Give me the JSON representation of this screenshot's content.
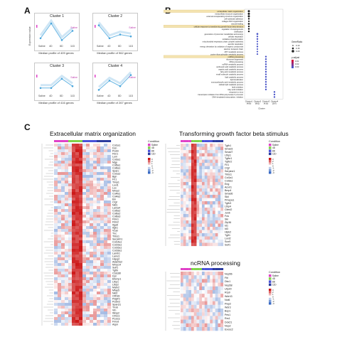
{
  "panels": {
    "a": "A",
    "b": "B",
    "c": "C"
  },
  "panel_a": {
    "ylabel": "Expression value",
    "clusters": [
      {
        "title": "Cluster 1",
        "caption": "Median profile of 409 genes",
        "ticks": [
          "Saline",
          "4D",
          "8D",
          "11D"
        ],
        "values": [
          0.2,
          1.0,
          0.1,
          0.6
        ],
        "tag": "Saline"
      },
      {
        "title": "Cluster 2",
        "caption": "Median profile of 962 genes",
        "ticks": [
          "Saline",
          "4D",
          "8D",
          "11D"
        ],
        "values": [
          0.9,
          0.2,
          0.4,
          0.3
        ],
        "tag": "Saline"
      },
      {
        "title": "Cluster 3",
        "caption": "Median profile of 416 genes",
        "ticks": [
          "Saline",
          "4D",
          "8D",
          "11D"
        ],
        "values": [
          0.2,
          0.2,
          0.7,
          0.3
        ],
        "tag": "Saline"
      },
      {
        "title": "Cluster 4",
        "caption": "Median profile of 267 genes",
        "ticks": [
          "Saline",
          "4D",
          "8D",
          "11D"
        ],
        "values": [
          0.1,
          0.6,
          0.3,
          0.9
        ],
        "tag": "Saline"
      }
    ]
  },
  "panel_b": {
    "terms": [
      "extracellular matrix organization",
      "extracellular structure organization",
      "external encapsulating structure organization",
      "cell-substrate adhesion",
      "collagen fibril organization",
      "wound healing",
      "cellular response to transforming growth factor beta stimulus",
      "regulation of angiogenesis",
      "ossification",
      "generation of precursor metabolites and energy",
      "cellular respiration",
      "oxidative phosphorylation",
      "mitochondrial respiratory chain complex assembly",
      "aerobic respiration",
      "energy derivation by oxidation of organic compounds",
      "electron transport chain",
      "ATP metabolic process",
      "purine ribonucleotide metabolic process",
      "ncRNA processing",
      "ribosome biogenesis",
      "rRNA processing",
      "ncRNA metabolic process",
      "carboxylic acid catabolic process",
      "organic acid catabolic process",
      "fatty acid metabolic process",
      "small molecule catabolic process",
      "lipid catabolic process",
      "lipid localization",
      "monocarboxylic acid metabolic process",
      "cellular lipid catabolic process",
      "lipid oxidation",
      "fatty acid oxidation",
      "response to virus",
      "transcription initiation from RNA polymerase II promoter",
      "DNA-templated transcription, initiation"
    ],
    "highlighted": [
      0,
      6,
      18
    ],
    "clusters": [
      "Cluster1\n(409)",
      "Cluster2\n(962)",
      "Cluster3\n(416)",
      "Cluster4\n(267)"
    ],
    "xlabel": "Cluster",
    "dots": [
      {
        "term": 0,
        "cluster": 0,
        "ratio": 0.15,
        "p": 0.2
      },
      {
        "term": 1,
        "cluster": 0,
        "ratio": 0.15,
        "p": 0.2
      },
      {
        "term": 2,
        "cluster": 0,
        "ratio": 0.15,
        "p": 0.2
      },
      {
        "term": 3,
        "cluster": 0,
        "ratio": 0.1,
        "p": 0.3
      },
      {
        "term": 4,
        "cluster": 0,
        "ratio": 0.08,
        "p": 0.3
      },
      {
        "term": 5,
        "cluster": 0,
        "ratio": 0.12,
        "p": 0.3
      },
      {
        "term": 6,
        "cluster": 0,
        "ratio": 0.1,
        "p": 0.3
      },
      {
        "term": 7,
        "cluster": 0,
        "ratio": 0.1,
        "p": 0.4
      },
      {
        "term": 8,
        "cluster": 0,
        "ratio": 0.1,
        "p": 0.4
      },
      {
        "term": 9,
        "cluster": 1,
        "ratio": 0.12,
        "p": 0.9
      },
      {
        "term": 10,
        "cluster": 1,
        "ratio": 0.1,
        "p": 0.9
      },
      {
        "term": 11,
        "cluster": 1,
        "ratio": 0.1,
        "p": 0.9
      },
      {
        "term": 12,
        "cluster": 1,
        "ratio": 0.08,
        "p": 0.9
      },
      {
        "term": 13,
        "cluster": 1,
        "ratio": 0.08,
        "p": 0.9
      },
      {
        "term": 14,
        "cluster": 1,
        "ratio": 0.1,
        "p": 0.9
      },
      {
        "term": 15,
        "cluster": 1,
        "ratio": 0.08,
        "p": 0.9
      },
      {
        "term": 16,
        "cluster": 1,
        "ratio": 0.08,
        "p": 0.9
      },
      {
        "term": 17,
        "cluster": 1,
        "ratio": 0.08,
        "p": 0.9
      },
      {
        "term": 18,
        "cluster": 2,
        "ratio": 0.1,
        "p": 0.9
      },
      {
        "term": 19,
        "cluster": 2,
        "ratio": 0.1,
        "p": 0.9
      },
      {
        "term": 20,
        "cluster": 2,
        "ratio": 0.1,
        "p": 0.9
      },
      {
        "term": 21,
        "cluster": 2,
        "ratio": 0.1,
        "p": 0.9
      },
      {
        "term": 22,
        "cluster": 2,
        "ratio": 0.1,
        "p": 0.9
      },
      {
        "term": 23,
        "cluster": 2,
        "ratio": 0.1,
        "p": 0.9
      },
      {
        "term": 24,
        "cluster": 2,
        "ratio": 0.1,
        "p": 0.9
      },
      {
        "term": 25,
        "cluster": 2,
        "ratio": 0.1,
        "p": 0.9
      },
      {
        "term": 26,
        "cluster": 2,
        "ratio": 0.1,
        "p": 0.9
      },
      {
        "term": 27,
        "cluster": 2,
        "ratio": 0.1,
        "p": 0.9
      },
      {
        "term": 28,
        "cluster": 2,
        "ratio": 0.1,
        "p": 0.9
      },
      {
        "term": 29,
        "cluster": 2,
        "ratio": 0.1,
        "p": 0.9
      },
      {
        "term": 30,
        "cluster": 2,
        "ratio": 0.1,
        "p": 0.9
      },
      {
        "term": 31,
        "cluster": 2,
        "ratio": 0.1,
        "p": 0.9
      },
      {
        "term": 32,
        "cluster": 3,
        "ratio": 0.1,
        "p": 0.9
      },
      {
        "term": 33,
        "cluster": 3,
        "ratio": 0.1,
        "p": 0.9
      },
      {
        "term": 34,
        "cluster": 3,
        "ratio": 0.1,
        "p": 0.9
      }
    ],
    "legend": {
      "generatio_title": "GeneRatio",
      "generatio_items": [
        "0.10",
        "0.15",
        "0.20"
      ],
      "padjust_title": "p.adjust",
      "padjust_items": [
        "0.01",
        "0.02",
        "0.03"
      ]
    },
    "colors": {
      "highlight": "#f4e3b0",
      "low": "#e8002a",
      "high": "#3a5fd9"
    }
  },
  "panel_c": {
    "heatmaps": [
      {
        "title": "Extracellular matrix organization",
        "genes": [
          "Col1a1",
          "Dcn",
          "Postn",
          "Fbn1",
          "Lum",
          "Col3a1",
          "Mgp",
          "Col5a1",
          "Col6a1",
          "Sparc",
          "Col1a2",
          "Bgn",
          "Fn1",
          "Timp1",
          "Loxl1",
          "Lox",
          "Mmp2",
          "Col4a1",
          "Col4a2",
          "Eln",
          "Ctgf",
          "Nid1",
          "Lama4",
          "Col5a2",
          "Col6a2",
          "Col6a3",
          "Fbln1",
          "Fbln2",
          "Itga5",
          "Itgb1",
          "Vcan",
          "Tnc",
          "Thbs1",
          "Serpinh1",
          "Col14a1",
          "Col15a1",
          "Col16a1",
          "Col18a1",
          "Lamb1",
          "Lamc1",
          "Hspg2",
          "Adamts2",
          "Mmp14",
          "Sulf1",
          "Tgfbi",
          "Ccdc80",
          "Dpt",
          "Efemp1",
          "Ltbp1",
          "Ltbp2",
          "Matn2",
          "Mfap5",
          "Nid2",
          "Olfml3",
          "Pdgfrb",
          "Postn2",
          "Sparcl1",
          "Tnxb",
          "Vtn",
          "Wisp2",
          "Cthrc1",
          "Pcolce",
          "Fmod",
          "Aspn"
        ]
      },
      {
        "title": "Transforming growth factor beta stimulus",
        "genes": [
          "Tgfb1",
          "Smad3",
          "Smad7",
          "Ltbp1",
          "Tgfbr1",
          "Tgfbr2",
          "Fn1",
          "Ctgf",
          "Serpine1",
          "Thbs1",
          "Col1a1",
          "Col3a1",
          "Eng",
          "Acvrl1",
          "Bmp4",
          "Smad6",
          "Skil",
          "Pmepa1",
          "Tgfb3",
          "Ltbp4",
          "Cited2",
          "Junb",
          "Fos",
          "Ski",
          "Zfp36",
          "Id1",
          "Id3",
          "Hipk2",
          "Tgif1",
          "Loxl2",
          "Sox9",
          "Sulf1"
        ]
      },
      {
        "title": "ncRNA processing",
        "genes": [
          "Nop56",
          "Fbl",
          "Dkc1",
          "Nop58",
          "Utp20",
          "Rrp9",
          "Wdr43",
          "Nol6",
          "Pwp2",
          "Wdr3",
          "Bop1",
          "Pes1",
          "Rrs1",
          "Ddx21",
          "Nop2",
          "Exosc2"
        ]
      }
    ],
    "condition_legend": {
      "title": "Condition",
      "items": [
        "Saline",
        "4D",
        "8D",
        "11D"
      ],
      "colors": [
        "#e040c8",
        "#7fd34a",
        "#4a52d9",
        "#2b3b9e"
      ]
    },
    "scale_legend": {
      "ticks": [
        "3",
        "2",
        "1",
        "0",
        "-1",
        "-2",
        "-3"
      ]
    }
  }
}
